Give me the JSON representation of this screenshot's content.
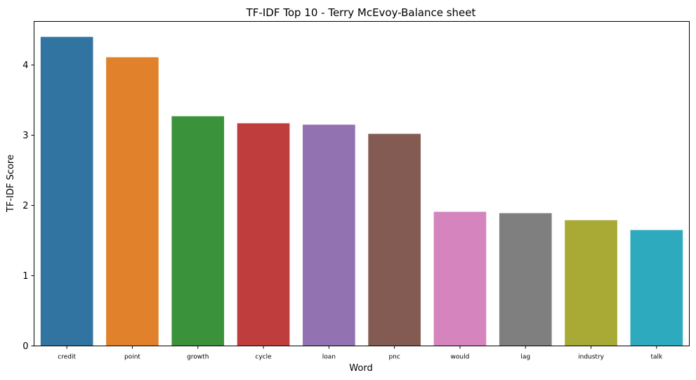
{
  "chart_data": {
    "type": "bar",
    "title": "TF-IDF Top 10 - Terry McEvoy-Balance sheet",
    "xlabel": "Word",
    "ylabel": "TF-IDF Score",
    "categories": [
      "credit",
      "point",
      "growth",
      "cycle",
      "loan",
      "pnc",
      "would",
      "lag",
      "industry",
      "talk"
    ],
    "values": [
      4.4,
      4.11,
      3.27,
      3.17,
      3.15,
      3.02,
      1.91,
      1.89,
      1.79,
      1.65
    ],
    "colors": [
      "#3274a1",
      "#e1812c",
      "#3a923a",
      "#c03d3e",
      "#9372b2",
      "#845b53",
      "#d684bd",
      "#7f7f7f",
      "#a9aa35",
      "#2eaabe"
    ],
    "ylim": [
      0,
      4.62
    ],
    "yticks": [
      0,
      1,
      2,
      3,
      4
    ],
    "grid": false,
    "legend": "none"
  }
}
